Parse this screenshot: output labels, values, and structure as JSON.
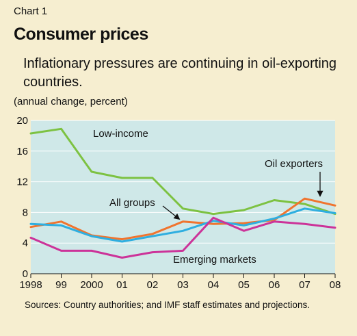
{
  "header": {
    "label": "Chart 1",
    "title": "Consumer prices",
    "subtitle": "Inflationary pressures are continuing in oil-exporting countries.",
    "unit": "(annual change, percent)"
  },
  "source_note": "Sources: Country authorities; and IMF staff estimates and projections.",
  "chart_data": {
    "type": "line",
    "title": "Consumer prices",
    "subtitle": "Inflationary pressures are continuing in oil-exporting countries.",
    "ylabel": "(annual change, percent)",
    "xlabel": "",
    "x": [
      "1998",
      "99",
      "2000",
      "01",
      "02",
      "03",
      "04",
      "05",
      "06",
      "07",
      "08"
    ],
    "ylim": [
      0,
      20
    ],
    "yticks": [
      "0",
      "4",
      "8",
      "12",
      "16",
      "20"
    ],
    "grid": true,
    "series": [
      {
        "name": "Low-income",
        "color": "#7dc242",
        "values": [
          18.3,
          18.9,
          13.3,
          12.5,
          12.5,
          8.5,
          7.8,
          8.3,
          9.6,
          9.1,
          7.8
        ]
      },
      {
        "name": "Oil exporters",
        "color": "#f0742e",
        "values": [
          6.1,
          6.8,
          5.0,
          4.5,
          5.2,
          6.8,
          6.5,
          6.6,
          7.0,
          9.8,
          8.9
        ]
      },
      {
        "name": "All groups",
        "color": "#2eaee0",
        "values": [
          6.5,
          6.3,
          4.9,
          4.2,
          4.9,
          5.6,
          6.9,
          6.3,
          7.2,
          8.5,
          7.9
        ]
      },
      {
        "name": "Emerging markets",
        "color": "#cc3399",
        "values": [
          4.7,
          3.0,
          3.0,
          2.1,
          2.8,
          3.0,
          7.3,
          5.6,
          6.8,
          6.5,
          6.0
        ]
      }
    ]
  }
}
